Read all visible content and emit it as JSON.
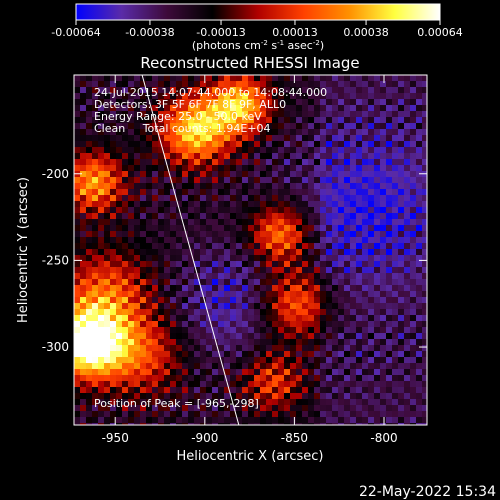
{
  "colorbar": {
    "ticks": [
      "-0.00064",
      "-0.00038",
      "-0.00013",
      "0.00013",
      "0.00038",
      "0.00064"
    ],
    "tick_values": [
      -0.00064,
      -0.00038,
      -0.00013,
      0.00013,
      0.00038,
      0.00064
    ],
    "range": [
      -0.00064,
      0.00064
    ],
    "units_parts": [
      "(photons cm",
      "-2",
      " s",
      "-1",
      " asec",
      "-2",
      ")"
    ],
    "colors": [
      "#0000ff",
      "#5a2ba8",
      "#3d0a3a",
      "#000000",
      "#b00000",
      "#ff4000",
      "#ff9000",
      "#ffff40",
      "#ffffff"
    ]
  },
  "chart_data": {
    "type": "heatmap",
    "title": "Reconstructed RHESSI Image",
    "xlabel": "Heliocentric X (arcsec)",
    "ylabel": "Heliocentric Y (arcsec)",
    "xlim": [
      -973,
      -776
    ],
    "ylim": [
      -345,
      -143
    ],
    "x_ticks": [
      "-950",
      "-900",
      "-850",
      "-800"
    ],
    "x_tick_values": [
      -950,
      -900,
      -850,
      -800
    ],
    "y_ticks": [
      "-200",
      "-250",
      "-300"
    ],
    "y_tick_values": [
      -200,
      -250,
      -300
    ],
    "info_lines": [
      "24-Jul-2015 14:07:44.000 to 14:08:44.000",
      "Detectors: 3F 5F 6F 7F 8F 9F, ALL0",
      "Energy Range: 25.0 - 50.0 keV",
      "Clean     Total counts: 1.94E+04"
    ],
    "peak_label": "Position of Peak = [-965,-298]",
    "peak": [
      -965,
      -298
    ],
    "limb_line": [
      [
        -935,
        -143
      ],
      [
        -881,
        -345
      ]
    ],
    "grid": false,
    "colormap": "blue-purple-black-red-yellow-white"
  },
  "footer": {
    "timestamp": "22-May-2022 15:34"
  }
}
